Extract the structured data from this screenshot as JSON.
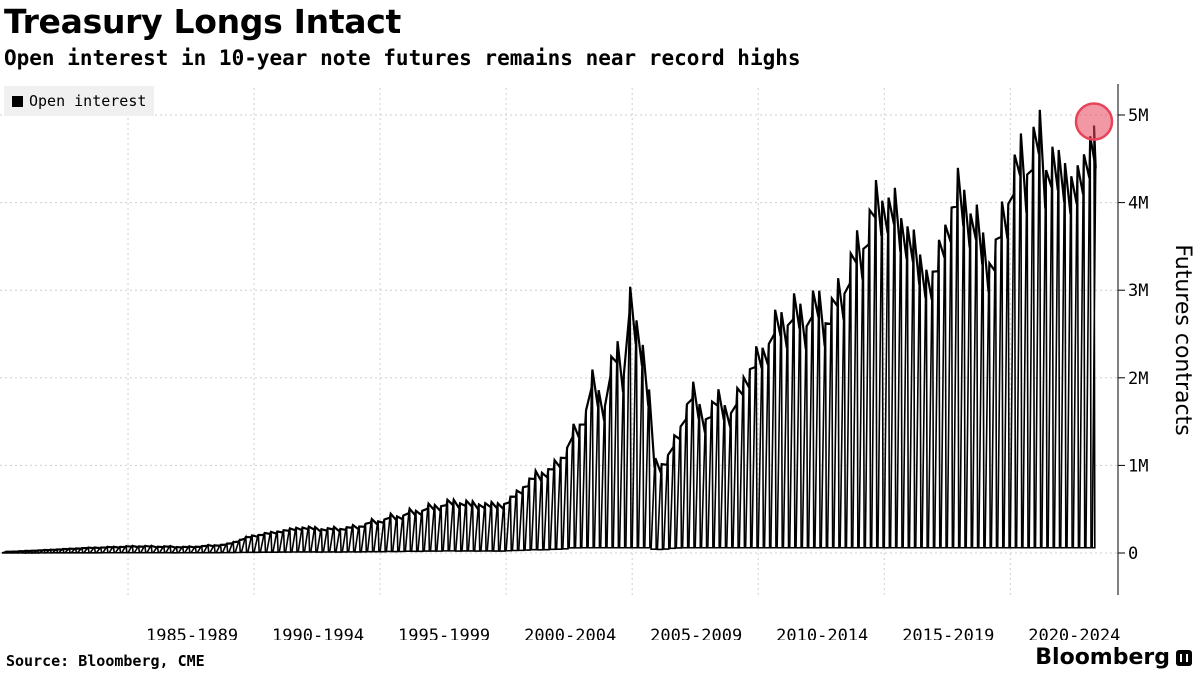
{
  "title": "Treasury Longs Intact",
  "subtitle": "Open interest in 10-year note futures remains near record highs",
  "legend": {
    "label": "Open interest"
  },
  "source": "Source: Bloomberg, CME",
  "brand": "Bloomberg",
  "colors": {
    "series": "#000000",
    "grid": "#cfcfcf",
    "highlight": "#e8435a",
    "legend_bg": "#f0f0f0"
  },
  "chart_data": {
    "type": "line",
    "title": "Treasury Longs Intact",
    "subtitle": "Open interest in 10-year note futures remains near record highs",
    "xlabel": "",
    "ylabel": "Futures contracts",
    "x_ticks": [
      "1985-1989",
      "1990-1994",
      "1995-1999",
      "2000-2004",
      "2005-2009",
      "2010-2014",
      "2015-2019",
      "2020-2024"
    ],
    "y_ticks": [
      "0",
      "1M",
      "2M",
      "3M",
      "4M",
      "5M"
    ],
    "ylim": [
      0,
      5000000
    ],
    "xlim": [
      1982.5,
      2025.9
    ],
    "grid": true,
    "legend_position": "top-left",
    "series": [
      {
        "name": "Open interest",
        "description": "Open interest rises in each quarterly contract cycle, then drops toward zero at each expiry. Values are cycle peaks.",
        "x": [
          1982.5,
          1984,
          1986,
          1988,
          1990,
          1991.5,
          1992.5,
          1993.5,
          1994.5,
          1995.5,
          1996.5,
          1997.5,
          1998.5,
          1999.5,
          2000.5,
          2001.5,
          2002.5,
          2003,
          2003.5,
          2004,
          2004.5,
          2005,
          2005.5,
          2006,
          2006.5,
          2007,
          2007.25,
          2007.5,
          2007.75,
          2008,
          2008.5,
          2009,
          2009.5,
          2010,
          2010.5,
          2011,
          2011.5,
          2012,
          2012.5,
          2013,
          2013.5,
          2014,
          2014.5,
          2015,
          2015.5,
          2016,
          2016.5,
          2017,
          2017.5,
          2018,
          2018.5,
          2019,
          2019.5,
          2020,
          2020.5,
          2021,
          2021.5,
          2022,
          2022.5,
          2023,
          2023.5,
          2024,
          2024.5,
          2025,
          2025.5,
          2025.9
        ],
        "values": [
          10000,
          30000,
          60000,
          80000,
          70000,
          100000,
          200000,
          250000,
          300000,
          280000,
          300000,
          380000,
          450000,
          530000,
          600000,
          570000,
          570000,
          700000,
          850000,
          950000,
          1000000,
          1250000,
          1500000,
          1950000,
          1800000,
          2400000,
          2200000,
          2880000,
          2600000,
          2550000,
          1050000,
          1100000,
          1500000,
          1900000,
          1550000,
          1850000,
          1600000,
          2050000,
          2250000,
          2500000,
          2750000,
          2800000,
          2800000,
          2900000,
          2800000,
          3200000,
          3500000,
          3900000,
          4200000,
          4000000,
          3800000,
          3400000,
          3200000,
          3800000,
          4250000,
          4050000,
          3600000,
          3450000,
          4300000,
          4550000,
          4800000,
          4700000,
          4600000,
          4300000,
          4550000,
          4880000
        ]
      }
    ],
    "highlight": {
      "x": 2025.9,
      "value": 4880000
    }
  }
}
